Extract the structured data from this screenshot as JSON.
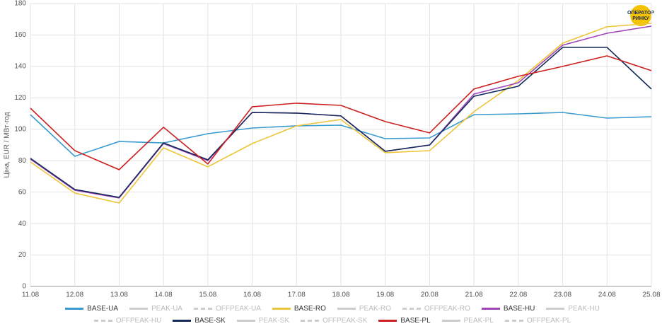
{
  "chart_data": {
    "type": "line",
    "y_label": "Ціна, EUR / МВт·год",
    "logo": [
      "ОПЕРАТОР",
      "РИНКУ"
    ],
    "categories": [
      "11.08",
      "12.08",
      "13.08",
      "14.08",
      "15.08",
      "16.08",
      "17.08",
      "18.08",
      "19.08",
      "20.08",
      "21.08",
      "22.08",
      "23.08",
      "24.08",
      "25.08"
    ],
    "ylim": [
      0,
      180
    ],
    "yticks": [
      0,
      20,
      40,
      60,
      80,
      100,
      120,
      140,
      160,
      180
    ],
    "grid": true,
    "legend": "bottom",
    "series": [
      {
        "name": "BASE-UA",
        "color": "#3a9ad0",
        "values": [
          109.3,
          82.8,
          92.2,
          91.3,
          97.2,
          100.8,
          102.2,
          102.6,
          94.0,
          94.5,
          109.3,
          109.8,
          110.7,
          107.1,
          108.0
        ]
      },
      {
        "name": "PEAK-UA",
        "color": "#cccccc",
        "hidden": true,
        "dash": false,
        "values": [
          null,
          null,
          null,
          null,
          null,
          null,
          null,
          null,
          null,
          null,
          null,
          null,
          null,
          null,
          null
        ]
      },
      {
        "name": "OFFPEAK-UA",
        "color": "#cccccc",
        "hidden": true,
        "dash": true,
        "values": [
          null,
          null,
          null,
          null,
          null,
          null,
          null,
          null,
          null,
          null,
          null,
          null,
          null,
          null,
          null
        ]
      },
      {
        "name": "BASE-RO",
        "color": "#ecc53a",
        "values": [
          79.2,
          59.4,
          53.1,
          88.2,
          76.1,
          90.9,
          102.2,
          106.2,
          85.1,
          86.4,
          111.2,
          131.0,
          154.8,
          165.2,
          167.4
        ]
      },
      {
        "name": "PEAK-RO",
        "color": "#cccccc",
        "hidden": true,
        "dash": false,
        "values": [
          null,
          null,
          null,
          null,
          null,
          null,
          null,
          null,
          null,
          null,
          null,
          null,
          null,
          null,
          null
        ]
      },
      {
        "name": "OFFPEAK-RO",
        "color": "#cccccc",
        "hidden": true,
        "dash": true,
        "values": [
          null,
          null,
          null,
          null,
          null,
          null,
          null,
          null,
          null,
          null,
          null,
          null,
          null,
          null,
          null
        ]
      },
      {
        "name": "BASE-HU",
        "color": "#a046b8",
        "values": [
          81.0,
          61.2,
          56.3,
          90.9,
          80.1,
          110.7,
          110.3,
          108.5,
          86.0,
          90.0,
          122.4,
          129.6,
          153.5,
          161.1,
          165.6
        ]
      },
      {
        "name": "PEAK-HU",
        "color": "#cccccc",
        "hidden": true,
        "dash": false,
        "values": [
          null,
          null,
          null,
          null,
          null,
          null,
          null,
          null,
          null,
          null,
          null,
          null,
          null,
          null,
          null
        ]
      },
      {
        "name": "OFFPEAK-HU",
        "color": "#cccccc",
        "hidden": true,
        "dash": true,
        "values": [
          null,
          null,
          null,
          null,
          null,
          null,
          null,
          null,
          null,
          null,
          null,
          null,
          null,
          null,
          null
        ]
      },
      {
        "name": "BASE-SK",
        "color": "#152a5c",
        "values": [
          81.5,
          61.7,
          56.7,
          91.3,
          80.6,
          110.7,
          110.3,
          108.5,
          86.0,
          90.0,
          121.0,
          127.4,
          152.1,
          152.1,
          125.6
        ]
      },
      {
        "name": "PEAK-SK",
        "color": "#cccccc",
        "hidden": true,
        "dash": false,
        "values": [
          null,
          null,
          null,
          null,
          null,
          null,
          null,
          null,
          null,
          null,
          null,
          null,
          null,
          null,
          null
        ]
      },
      {
        "name": "OFFPEAK-SK",
        "color": "#cccccc",
        "hidden": true,
        "dash": true,
        "values": [
          null,
          null,
          null,
          null,
          null,
          null,
          null,
          null,
          null,
          null,
          null,
          null,
          null,
          null,
          null
        ]
      },
      {
        "name": "BASE-PL",
        "color": "#cc2020",
        "values": [
          113.4,
          86.4,
          74.3,
          101.3,
          77.9,
          114.3,
          116.6,
          115.2,
          104.9,
          97.7,
          125.6,
          133.7,
          140.0,
          146.7,
          137.3
        ]
      },
      {
        "name": "PEAK-PL",
        "color": "#cccccc",
        "hidden": true,
        "dash": false,
        "values": [
          null,
          null,
          null,
          null,
          null,
          null,
          null,
          null,
          null,
          null,
          null,
          null,
          null,
          null,
          null
        ]
      },
      {
        "name": "OFFPEAK-PL",
        "color": "#cccccc",
        "hidden": true,
        "dash": true,
        "values": [
          null,
          null,
          null,
          null,
          null,
          null,
          null,
          null,
          null,
          null,
          null,
          null,
          null,
          null,
          null
        ]
      }
    ]
  }
}
